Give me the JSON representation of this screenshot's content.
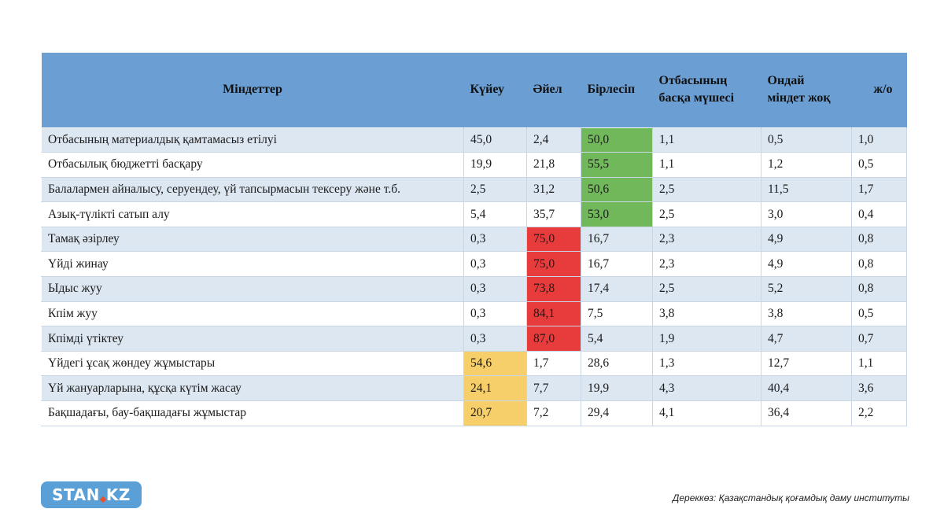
{
  "table": {
    "headers": [
      "Міндеттер",
      "Күйеу",
      "Әйел",
      "Бірлесіп",
      "Отбасының\nбасқа мүшесі",
      "Ондай\nміндет  жоқ",
      "ж/о"
    ],
    "rows": [
      {
        "label": "Отбасының материалдық қамтамасыз етілуі",
        "values": [
          "45,0",
          "2,4",
          "50,0",
          "1,1",
          "0,5",
          "1,0"
        ],
        "highlight": "green",
        "highlight_col": 3
      },
      {
        "label": "Отбасылық бюджетті басқару",
        "values": [
          "19,9",
          "21,8",
          "55,5",
          "1,1",
          "1,2",
          "0,5"
        ],
        "highlight": "green",
        "highlight_col": 3
      },
      {
        "label": "Балалармен айналысу, серуендеу, үй тапсырмасын тексеру және т.б.",
        "values": [
          "2,5",
          "31,2",
          "50,6",
          "2,5",
          "11,5",
          "1,7"
        ],
        "highlight": "green",
        "highlight_col": 3
      },
      {
        "label": "Азық-түлікті сатып алу",
        "values": [
          "5,4",
          "35,7",
          "53,0",
          "2,5",
          "3,0",
          "0,4"
        ],
        "highlight": "green",
        "highlight_col": 3
      },
      {
        "label": "Тамақ әзірлеу",
        "values": [
          "0,3",
          "75,0",
          "16,7",
          "2,3",
          "4,9",
          "0,8"
        ],
        "highlight": "red",
        "highlight_col": 2
      },
      {
        "label": "Үйді жинау",
        "values": [
          "0,3",
          "75,0",
          "16,7",
          "2,3",
          "4,9",
          "0,8"
        ],
        "highlight": "red",
        "highlight_col": 2
      },
      {
        "label": "Ыдыс жуу",
        "values": [
          "0,3",
          "73,8",
          "17,4",
          "2,5",
          "5,2",
          "0,8"
        ],
        "highlight": "red",
        "highlight_col": 2
      },
      {
        "label": "Кпім жуу",
        "values": [
          "0,3",
          "84,1",
          "7,5",
          "3,8",
          "3,8",
          "0,5"
        ],
        "highlight": "red",
        "highlight_col": 2
      },
      {
        "label": "Кпімді үтіктеу",
        "values": [
          "0,3",
          "87,0",
          "5,4",
          "1,9",
          "4,7",
          "0,7"
        ],
        "highlight": "red",
        "highlight_col": 2
      },
      {
        "label": "Үйдегі ұсақ жөндеу жұмыстары",
        "values": [
          "54,6",
          "1,7",
          "28,6",
          "1,3",
          "12,7",
          "1,1"
        ],
        "highlight": "yellow",
        "highlight_col": 1
      },
      {
        "label": "Үй жануарларына, құсқа күтім жасау",
        "values": [
          "24,1",
          "7,7",
          "19,9",
          "4,3",
          "40,4",
          "3,6"
        ],
        "highlight": "yellow",
        "highlight_col": 1
      },
      {
        "label": "Бақшадағы, бау-бақшадағы жұмыстар",
        "values": [
          "20,7",
          "7,2",
          "29,4",
          "4,1",
          "36,4",
          "2,2"
        ],
        "highlight": "yellow",
        "highlight_col": 1
      }
    ],
    "colors": {
      "header": "#6b9fd4",
      "stripe": "#dde7f2",
      "green": "#70b85a",
      "red": "#e83c3c",
      "yellow": "#f6cf6a"
    }
  },
  "logo": {
    "text_left": "STAN",
    "text_right": "KZ"
  },
  "source": "Дереккөз: Қазақстандық қоғамдық даму институты"
}
